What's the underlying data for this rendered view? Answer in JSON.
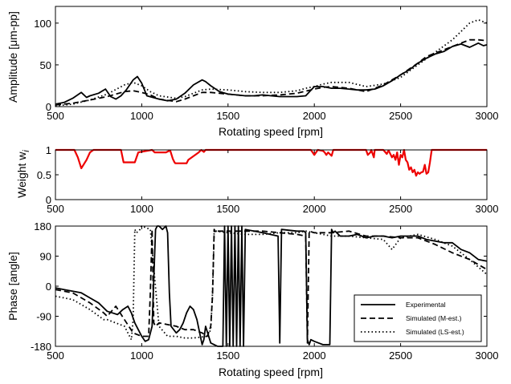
{
  "chart_data": [
    {
      "type": "line",
      "xlabel": "Rotating speed [rpm]",
      "ylabel": "Amplitude [μm-pp]",
      "xlim": [
        500,
        3000
      ],
      "ylim": [
        0,
        120
      ],
      "xticks": [
        500,
        1000,
        1500,
        2000,
        2500,
        3000
      ],
      "yticks": [
        0,
        50,
        100
      ],
      "series": [
        {
          "style": "solid",
          "color": "#000000",
          "x": [
            500,
            550,
            600,
            650,
            680,
            700,
            750,
            790,
            820,
            850,
            880,
            910,
            950,
            975,
            1000,
            1030,
            1100,
            1150,
            1200,
            1250,
            1300,
            1350,
            1370,
            1400,
            1450,
            1500,
            1550,
            1600,
            1650,
            1700,
            1750,
            1800,
            1850,
            1900,
            1950,
            2000,
            2050,
            2100,
            2150,
            2200,
            2250,
            2300,
            2350,
            2400,
            2450,
            2500,
            2550,
            2600,
            2650,
            2700,
            2750,
            2800,
            2850,
            2900,
            2950,
            2980,
            3000
          ],
          "y": [
            3,
            5,
            10,
            17,
            11,
            13,
            16,
            21,
            12,
            9,
            13,
            20,
            32,
            36,
            28,
            13,
            9,
            7,
            9,
            16,
            26,
            32,
            30,
            25,
            18,
            15,
            14,
            13,
            13,
            14,
            13,
            12,
            12,
            12,
            13,
            24,
            24,
            22,
            22,
            21,
            20,
            20,
            21,
            25,
            31,
            38,
            44,
            52,
            58,
            63,
            66,
            72,
            75,
            71,
            76,
            73,
            74
          ]
        },
        {
          "style": "dashed",
          "color": "#000000",
          "x": [
            500,
            600,
            700,
            800,
            900,
            950,
            1000,
            1050,
            1100,
            1200,
            1250,
            1300,
            1350,
            1400,
            1500,
            1600,
            1700,
            1800,
            1900,
            2000,
            2050,
            2100,
            2200,
            2300,
            2400,
            2500,
            2600,
            2650,
            2700,
            2800,
            2900,
            2950,
            3000
          ],
          "y": [
            2,
            4,
            8,
            12,
            18,
            19,
            17,
            14,
            9,
            6,
            9,
            13,
            17,
            17,
            15,
            13,
            13,
            14,
            16,
            21,
            23,
            24,
            22,
            18,
            26,
            38,
            52,
            60,
            64,
            72,
            80,
            80,
            79
          ]
        },
        {
          "style": "dotted",
          "color": "#000000",
          "x": [
            500,
            600,
            700,
            800,
            900,
            950,
            1000,
            1050,
            1100,
            1200,
            1250,
            1300,
            1350,
            1400,
            1500,
            1600,
            1700,
            1800,
            1900,
            1950,
            2000,
            2050,
            2100,
            2200,
            2300,
            2400,
            2500,
            2600,
            2700,
            2800,
            2850,
            2900,
            2950,
            3000
          ],
          "y": [
            1,
            3,
            8,
            15,
            26,
            29,
            25,
            18,
            13,
            10,
            12,
            16,
            20,
            21,
            20,
            18,
            17,
            17,
            19,
            22,
            24,
            27,
            29,
            29,
            24,
            27,
            35,
            50,
            65,
            80,
            90,
            100,
            104,
            100
          ]
        }
      ]
    },
    {
      "type": "line",
      "ylabel": "Weight w",
      "ylabel_subscript": "i",
      "xlim": [
        500,
        3000
      ],
      "ylim": [
        0,
        1
      ],
      "xticks": [
        500,
        1000,
        1500,
        2000,
        2500,
        3000
      ],
      "yticks": [
        0,
        0.5,
        1
      ],
      "series": [
        {
          "style": "solid",
          "color": "#ee0000",
          "x": [
            500,
            610,
            630,
            650,
            680,
            700,
            720,
            880,
            895,
            960,
            980,
            1060,
            1075,
            1100,
            1140,
            1165,
            1180,
            1190,
            1195,
            1260,
            1270,
            1330,
            1345,
            1360,
            1370,
            1980,
            1990,
            2000,
            2020,
            2050,
            2060,
            2070,
            2080,
            2100,
            2110,
            2300,
            2310,
            2325,
            2330,
            2345,
            2350,
            2400,
            2420,
            2430,
            2450,
            2460,
            2470,
            2480,
            2490,
            2500,
            2510,
            2520,
            2530,
            2540,
            2550,
            2560,
            2570,
            2580,
            2590,
            2600,
            2610,
            2620,
            2630,
            2640,
            2650,
            2660,
            2670,
            2680,
            2690,
            3000
          ],
          "y": [
            1,
            1,
            0.85,
            0.63,
            0.8,
            0.95,
            1,
            1,
            0.75,
            0.75,
            0.95,
            1,
            0.95,
            0.95,
            0.95,
            0.99,
            0.82,
            0.75,
            0.73,
            0.73,
            0.8,
            0.95,
            1,
            0.96,
            1,
            1,
            0.95,
            0.9,
            1,
            0.98,
            0.95,
            0.9,
            0.95,
            0.88,
            1,
            1,
            0.9,
            0.95,
            1,
            0.85,
            1,
            1,
            0.92,
            0.99,
            0.85,
            0.9,
            0.8,
            0.95,
            0.7,
            0.9,
            0.85,
            1,
            0.8,
            0.75,
            0.6,
            0.65,
            0.55,
            0.6,
            0.48,
            0.55,
            0.52,
            0.55,
            0.56,
            0.7,
            0.52,
            0.55,
            0.75,
            1,
            1,
            1
          ]
        }
      ]
    },
    {
      "type": "line",
      "xlabel": "Rotating speed [rpm]",
      "ylabel": "Phase [angle]",
      "xlim": [
        500,
        3000
      ],
      "ylim": [
        -180,
        180
      ],
      "xticks": [
        500,
        1000,
        1500,
        2000,
        2500,
        3000
      ],
      "yticks": [
        -180,
        -90,
        0,
        90,
        180
      ],
      "series": [
        {
          "name": "Experimental",
          "style": "solid",
          "color": "#000000",
          "x": [
            500,
            550,
            600,
            650,
            700,
            750,
            800,
            830,
            860,
            890,
            920,
            940,
            960,
            980,
            1000,
            1020,
            1040,
            1060,
            1080,
            1090,
            1100,
            1120,
            1140,
            1150,
            1160,
            1170,
            1200,
            1220,
            1240,
            1260,
            1280,
            1300,
            1320,
            1340,
            1350,
            1360,
            1370,
            1400,
            1420,
            1440,
            1460,
            1470,
            1480,
            1490,
            1500,
            1510,
            1520,
            1530,
            1540,
            1550,
            1560,
            1570,
            1580,
            1590,
            1600,
            1700,
            1790,
            1800,
            1810,
            1900,
            1940,
            1950,
            1960,
            1970,
            1980,
            2000,
            2050,
            2080,
            2090,
            2100,
            2110,
            2120,
            2150,
            2200,
            2250,
            2300,
            2350,
            2400,
            2450,
            2500,
            2550,
            2600,
            2650,
            2700,
            2750,
            2800,
            2850,
            2900,
            2950,
            3000
          ],
          "y": [
            -5,
            -10,
            -15,
            -20,
            -35,
            -50,
            -75,
            -80,
            -85,
            -70,
            -60,
            -80,
            -110,
            -130,
            -150,
            -165,
            -160,
            -120,
            170,
            180,
            180,
            170,
            180,
            160,
            -20,
            -120,
            -140,
            -130,
            -110,
            -80,
            -60,
            -70,
            -100,
            -150,
            -175,
            -160,
            -120,
            -170,
            -175,
            -180,
            -180,
            -180,
            180,
            -180,
            180,
            -180,
            180,
            -180,
            180,
            -180,
            180,
            -180,
            180,
            -180,
            170,
            160,
            150,
            -170,
            170,
            165,
            165,
            160,
            -160,
            -175,
            -160,
            -165,
            -175,
            -175,
            -175,
            170,
            160,
            165,
            150,
            150,
            155,
            145,
            150,
            150,
            145,
            150,
            150,
            150,
            140,
            135,
            130,
            130,
            110,
            100,
            80,
            75
          ]
        },
        {
          "name": "Simulated (M-est.)",
          "style": "dashed",
          "color": "#000000",
          "x": [
            500,
            600,
            700,
            780,
            800,
            850,
            900,
            950,
            1000,
            1040,
            1050,
            1060,
            1070,
            1080,
            1100,
            1200,
            1250,
            1300,
            1350,
            1380,
            1400,
            1410,
            1420,
            1430,
            1440,
            1450,
            1470,
            1500,
            1600,
            1700,
            1800,
            1900,
            1950,
            1960,
            1970,
            2000,
            2100,
            2200,
            2300,
            2400,
            2500,
            2600,
            2700,
            2800,
            2900,
            3000
          ],
          "y": [
            -10,
            -20,
            -50,
            -80,
            -90,
            -60,
            -100,
            -140,
            -150,
            -150,
            -20,
            170,
            -110,
            -120,
            -110,
            -120,
            -130,
            -130,
            -140,
            -150,
            -120,
            -30,
            170,
            160,
            165,
            165,
            165,
            165,
            165,
            165,
            160,
            155,
            150,
            -170,
            165,
            160,
            160,
            165,
            150,
            150,
            145,
            145,
            125,
            100,
            80,
            50
          ]
        },
        {
          "name": "Simulated (LS-est.)",
          "style": "dotted",
          "color": "#000000",
          "x": [
            500,
            600,
            700,
            780,
            800,
            900,
            940,
            950,
            960,
            970,
            990,
            1000,
            1050,
            1100,
            1150,
            1200,
            1250,
            1300,
            1380,
            1400,
            1410,
            1420,
            1430,
            1500,
            1600,
            1700,
            1800,
            1900,
            1950,
            2000,
            2100,
            2200,
            2300,
            2400,
            2450,
            2500,
            2600,
            2700,
            2800,
            2900,
            3000
          ],
          "y": [
            -30,
            -40,
            -70,
            -100,
            -100,
            -120,
            -160,
            -100,
            170,
            160,
            170,
            180,
            170,
            -120,
            -150,
            -150,
            -155,
            -155,
            -150,
            -130,
            -20,
            170,
            165,
            160,
            155,
            155,
            160,
            160,
            165,
            160,
            150,
            150,
            145,
            140,
            110,
            145,
            155,
            140,
            120,
            80,
            35
          ]
        }
      ],
      "legend": {
        "position": "bottom-right"
      }
    }
  ]
}
